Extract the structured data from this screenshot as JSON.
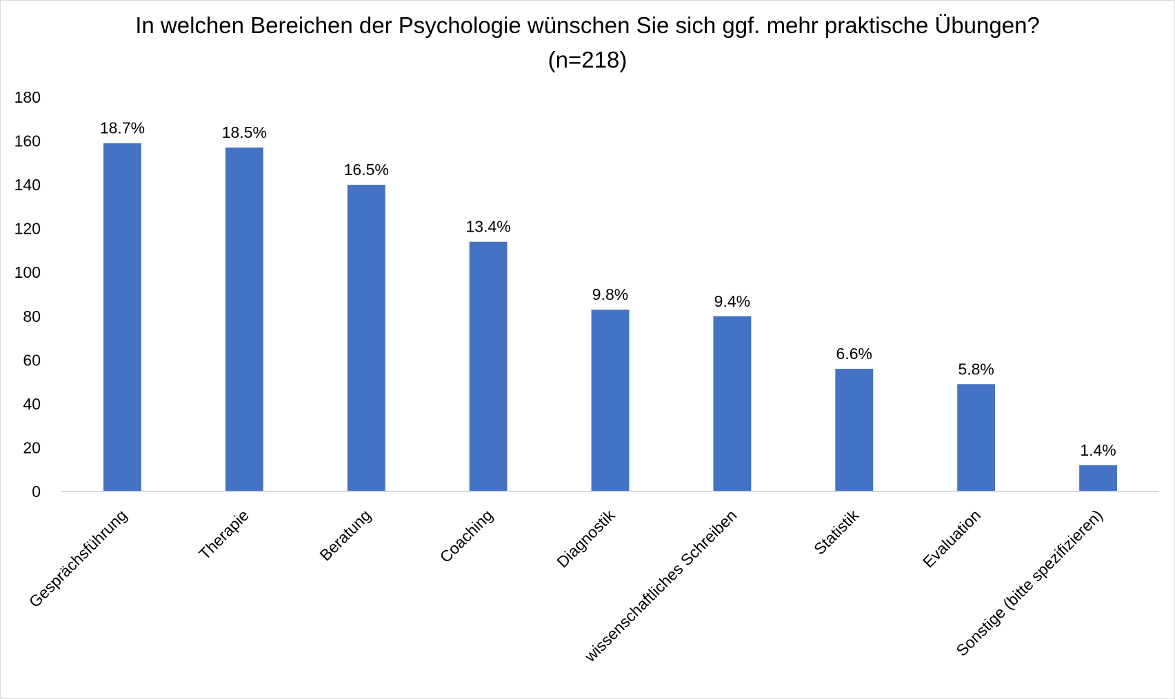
{
  "chart_data": {
    "type": "bar",
    "title": "In welchen Bereichen der Psychologie wünschen Sie sich ggf. mehr praktische Übungen?",
    "subtitle": "(n=218)",
    "categories": [
      "Gesprächsführung",
      "Therapie",
      "Beratung",
      "Coaching",
      "Diagnostik",
      "wissenschaftliches Schreiben",
      "Statistik",
      "Evaluation",
      "Sonstige (bitte spezifizieren)"
    ],
    "values": [
      159,
      157,
      140,
      114,
      83,
      80,
      56,
      49,
      12
    ],
    "data_labels": [
      "18.7%",
      "18.5%",
      "16.5%",
      "13.4%",
      "9.8%",
      "9.4%",
      "6.6%",
      "5.8%",
      "1.4%"
    ],
    "ylim": [
      0,
      180
    ],
    "yticks": [
      0,
      20,
      40,
      60,
      80,
      100,
      120,
      140,
      160,
      180
    ],
    "grid": false,
    "legend": "none",
    "bar_color": "#4472c4",
    "axis_color": "#d9d9d9"
  }
}
